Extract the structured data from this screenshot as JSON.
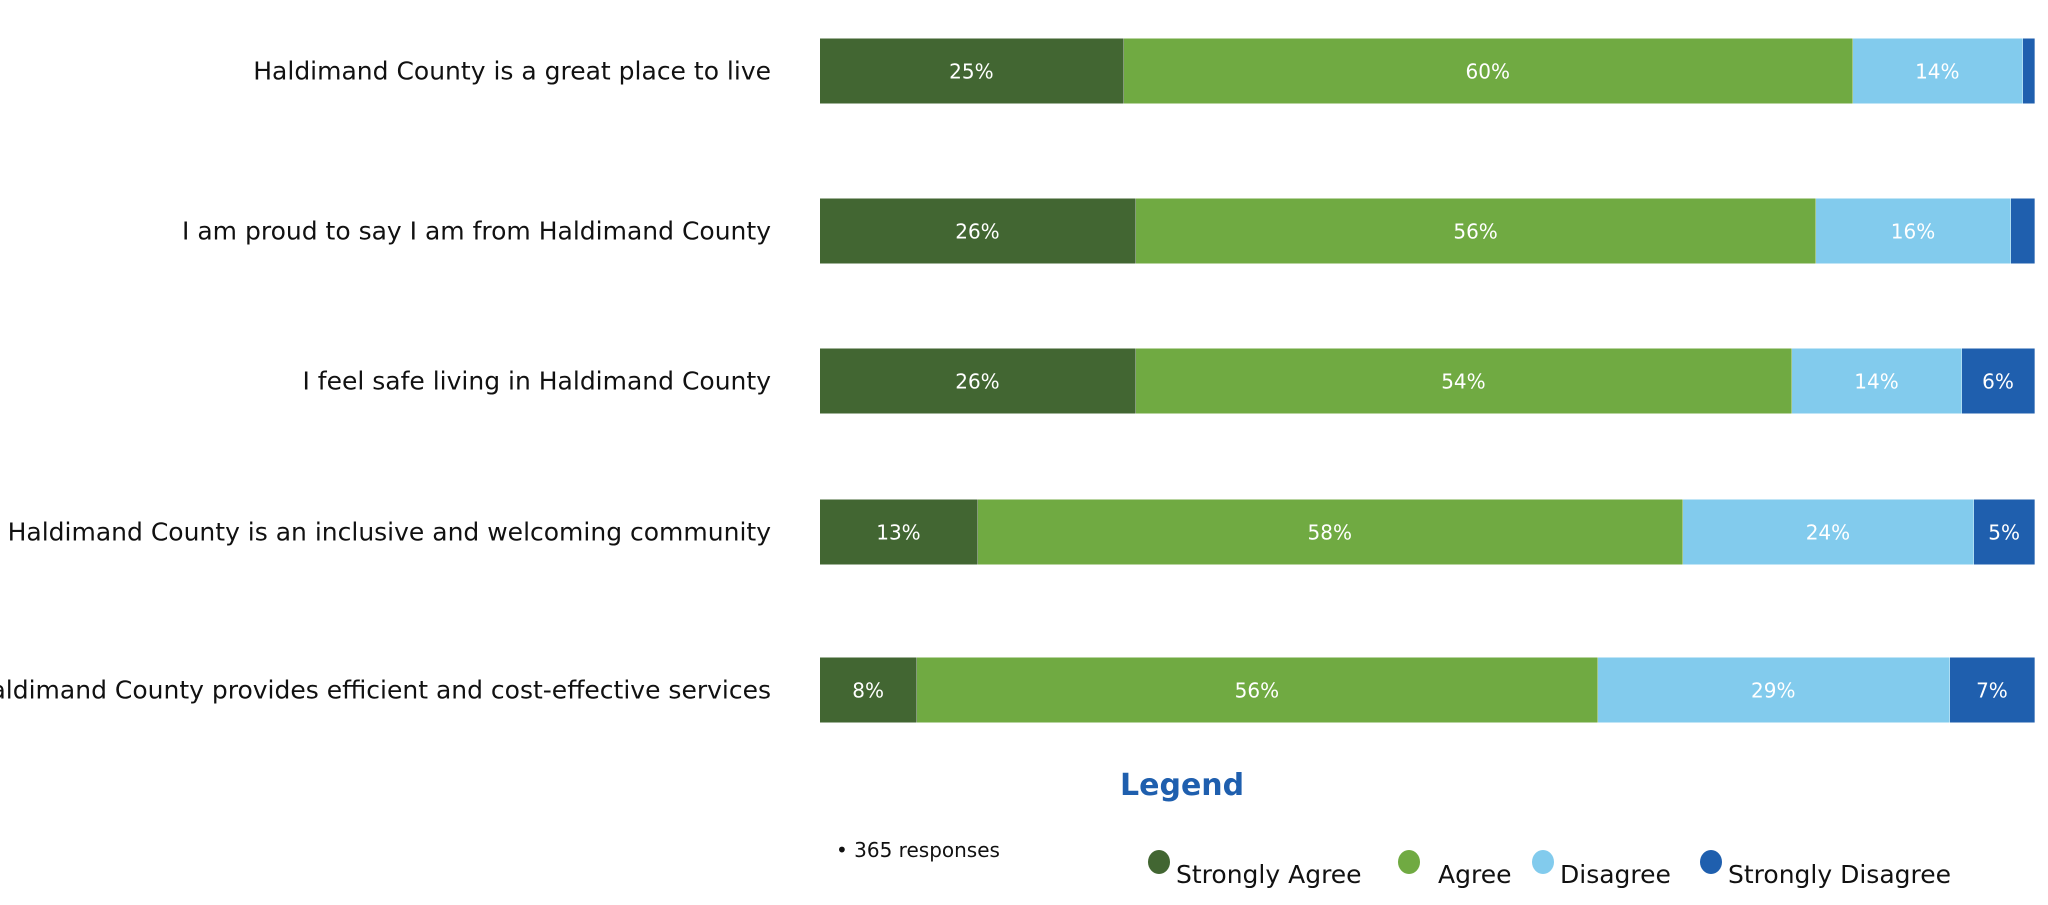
{
  "chart_data": {
    "type": "bar",
    "orientation": "horizontal",
    "stacked": true,
    "categories": [
      "Haldimand County is a great place to live",
      "I am proud to say I am from Haldimand County",
      "I feel safe living in Haldimand County",
      "Haldimand County is an inclusive and welcoming community",
      "Haldimand County provides efficient and cost-effective services"
    ],
    "series": [
      {
        "name": "Strongly Agree",
        "color": "#426632",
        "values": [
          25,
          26,
          26,
          13,
          8
        ],
        "labels": [
          "25%",
          "26%",
          "26%",
          "13%",
          "8%"
        ]
      },
      {
        "name": "Agree",
        "color": "#70aa42",
        "values": [
          60,
          56,
          54,
          58,
          56
        ],
        "labels": [
          "60%",
          "56%",
          "54%",
          "58%",
          "56%"
        ]
      },
      {
        "name": "Disagree",
        "color": "#82cbed",
        "values": [
          14,
          16,
          14,
          24,
          29
        ],
        "labels": [
          "14%",
          "16%",
          "14%",
          "24%",
          "29%"
        ]
      },
      {
        "name": "Strongly Disagree",
        "color": "#1f5fae",
        "values": [
          1,
          2,
          6,
          5,
          7
        ],
        "labels": [
          "",
          "",
          "6%",
          "5%",
          "7%"
        ]
      }
    ],
    "legend_title": "Legend",
    "legend_position": "bottom",
    "note": "• 365 responses",
    "grid": false
  }
}
